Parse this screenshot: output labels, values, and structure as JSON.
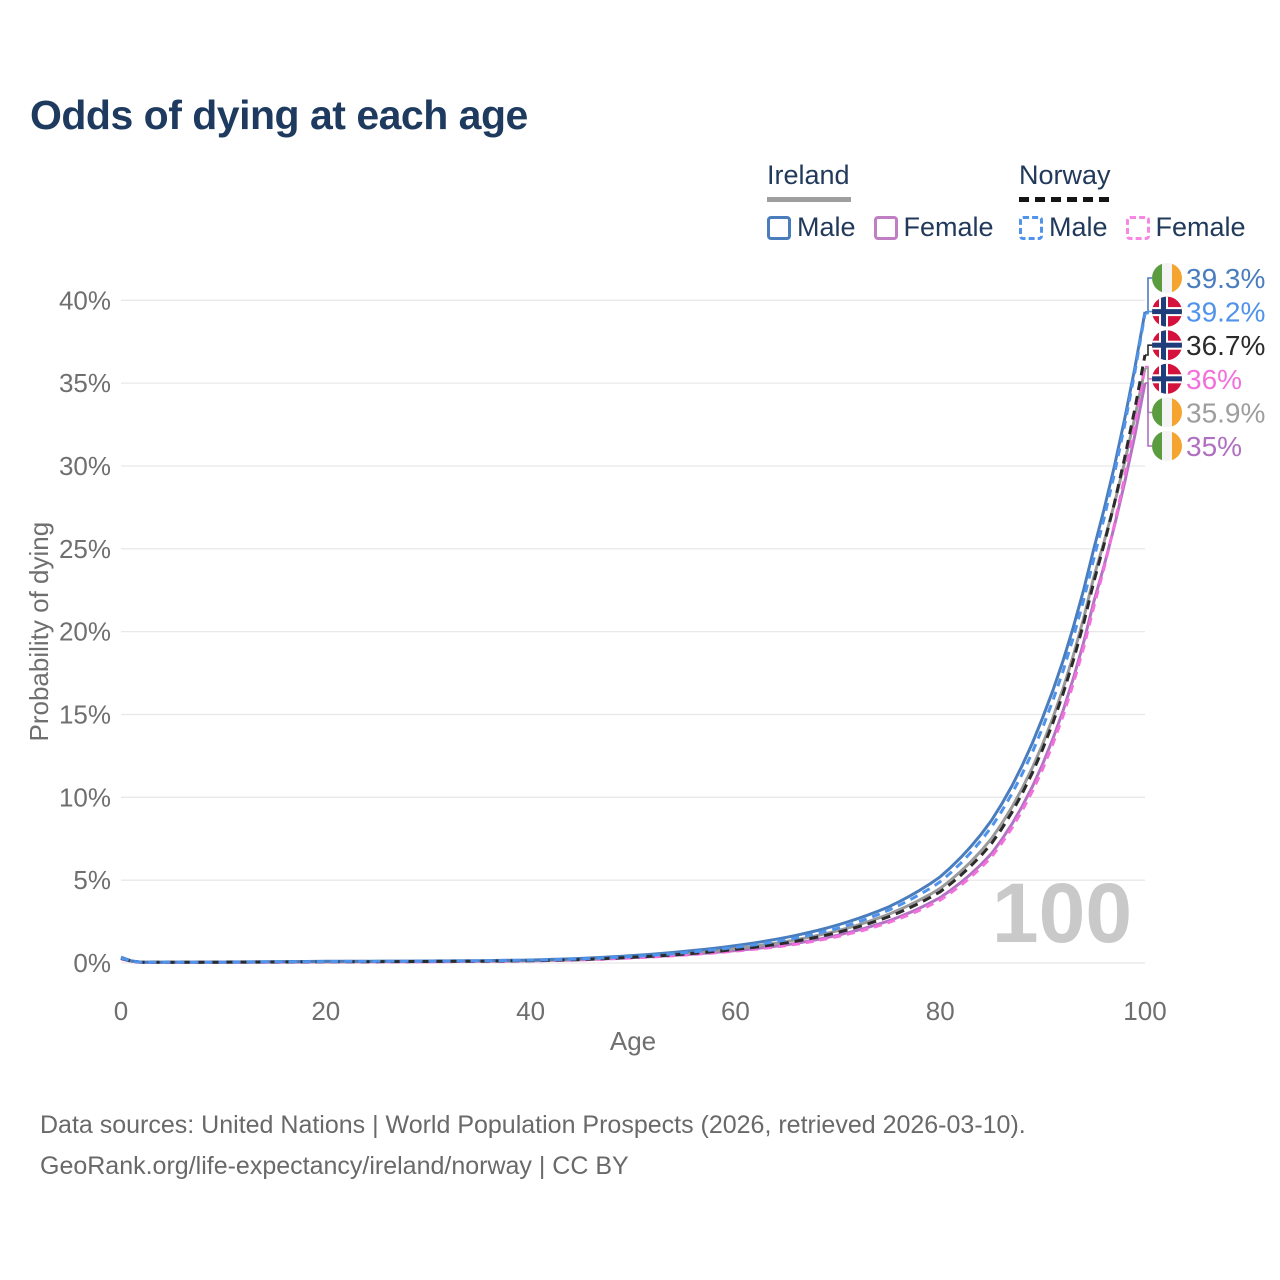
{
  "title": "Odds of dying at each age",
  "legend": {
    "groups": [
      {
        "name": "Ireland",
        "underline_style": "solid",
        "underline_color": "#9e9e9e",
        "items": [
          {
            "label": "Male",
            "box_color": "#4a7dbd",
            "dashed": false
          },
          {
            "label": "Female",
            "box_color": "#c07fc5",
            "dashed": false
          }
        ]
      },
      {
        "name": "Norway",
        "underline_style": "dashed",
        "underline_color": "#141414",
        "items": [
          {
            "label": "Male",
            "box_color": "#4f93ea",
            "dashed": true
          },
          {
            "label": "Female",
            "box_color": "#f787e3",
            "dashed": true
          }
        ]
      }
    ]
  },
  "chart_data": {
    "type": "line",
    "title": "Odds of dying at each age",
    "xlabel": "Age",
    "ylabel": "Probability of dying",
    "xlim": [
      0,
      100
    ],
    "ylim": [
      0,
      40
    ],
    "x_ticks": [
      0,
      20,
      40,
      60,
      80,
      100
    ],
    "y_ticks": [
      0,
      5,
      10,
      15,
      20,
      25,
      30,
      35,
      40
    ],
    "y_tick_labels": [
      "0%",
      "5%",
      "10%",
      "15%",
      "20%",
      "25%",
      "30%",
      "35%",
      "40%"
    ],
    "grid": "horizontal",
    "legend_position": "top-right",
    "watermark": "100",
    "ages": [
      0,
      2,
      5,
      10,
      15,
      20,
      25,
      30,
      35,
      40,
      45,
      50,
      55,
      60,
      65,
      70,
      75,
      80,
      85,
      90,
      95,
      100
    ],
    "series": [
      {
        "name": "Ireland Female",
        "country": "ireland",
        "sex": "female",
        "color": "#b472c3",
        "dash": null,
        "values": [
          0.3,
          0.04,
          0.04,
          0.04,
          0.05,
          0.06,
          0.07,
          0.08,
          0.1,
          0.13,
          0.2,
          0.33,
          0.5,
          0.75,
          1.1,
          1.68,
          2.55,
          3.95,
          6.6,
          12.0,
          21.8,
          35.0
        ],
        "end_label": "35%",
        "label_color": "#b06fc0"
      },
      {
        "name": "Ireland Total",
        "country": "ireland",
        "sex": "both",
        "color": "#9a9a9a",
        "dash": null,
        "values": [
          0.32,
          0.04,
          0.04,
          0.05,
          0.07,
          0.08,
          0.09,
          0.1,
          0.12,
          0.15,
          0.23,
          0.38,
          0.58,
          0.88,
          1.3,
          1.95,
          2.95,
          4.5,
          7.5,
          13.2,
          23.3,
          35.9
        ],
        "end_label": "35.9%",
        "label_color": "#9e9e9e"
      },
      {
        "name": "Ireland Male",
        "country": "ireland",
        "sex": "male",
        "color": "#4a7dbd",
        "dash": null,
        "values": [
          0.35,
          0.05,
          0.05,
          0.06,
          0.08,
          0.1,
          0.11,
          0.12,
          0.14,
          0.18,
          0.28,
          0.45,
          0.7,
          1.05,
          1.55,
          2.3,
          3.4,
          5.2,
          8.6,
          14.8,
          25.0,
          39.3
        ],
        "end_label": "39.3%",
        "label_color": "#4a7dbd"
      },
      {
        "name": "Norway Female",
        "country": "norway",
        "sex": "female",
        "color": "#f36fdc",
        "dash": "8 6",
        "values": [
          0.26,
          0.03,
          0.03,
          0.04,
          0.05,
          0.06,
          0.07,
          0.08,
          0.1,
          0.13,
          0.19,
          0.31,
          0.48,
          0.72,
          1.05,
          1.6,
          2.45,
          3.8,
          6.4,
          11.7,
          21.5,
          36.0
        ],
        "end_label": "36%",
        "label_color": "#f36fdc"
      },
      {
        "name": "Norway Total",
        "country": "norway",
        "sex": "both",
        "color": "#2b2b2b",
        "dash": "9 6",
        "values": [
          0.28,
          0.04,
          0.04,
          0.05,
          0.06,
          0.07,
          0.08,
          0.09,
          0.11,
          0.14,
          0.21,
          0.35,
          0.54,
          0.82,
          1.22,
          1.85,
          2.8,
          4.3,
          7.2,
          12.9,
          23.0,
          36.7
        ],
        "end_label": "36.7%",
        "label_color": "#2b2b2b"
      },
      {
        "name": "Norway Male",
        "country": "norway",
        "sex": "male",
        "color": "#4f93ea",
        "dash": "8 6",
        "values": [
          0.3,
          0.04,
          0.04,
          0.05,
          0.07,
          0.09,
          0.1,
          0.11,
          0.13,
          0.17,
          0.25,
          0.4,
          0.62,
          0.95,
          1.4,
          2.1,
          3.2,
          4.9,
          8.2,
          14.2,
          24.4,
          39.2
        ],
        "end_label": "39.2%",
        "label_color": "#4f93ea"
      }
    ],
    "flag_colors": {
      "ireland_green": "#5b9c40",
      "ireland_white": "#f4f4f4",
      "ireland_orange": "#f5a430",
      "norway_red": "#d5123d",
      "norway_white": "#ffffff",
      "norway_navy": "#1f3d7a"
    },
    "axis_text_color": "#6f6f6f",
    "grid_color": "#e8e8e8",
    "watermark_color": "#c9c9c9"
  },
  "footer": {
    "line1": "Data sources: United Nations | World Population Prospects (2026, retrieved 2026-03-10).",
    "line2": "GeoRank.org/life-expectancy/ireland/norway | CC BY"
  }
}
